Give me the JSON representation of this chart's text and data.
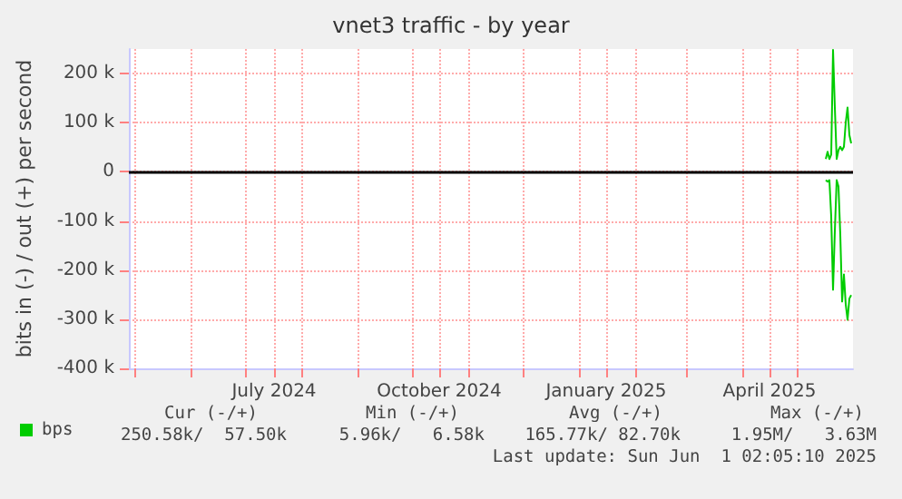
{
  "chart_data": {
    "type": "line",
    "title": "vnet3 traffic - by year",
    "ylabel": "bits in (-) / out (+) per second",
    "xlim": [
      "2024-04-28",
      "2025-06-01"
    ],
    "xticks": [
      {
        "value": "2024-05-01",
        "label": null
      },
      {
        "value": "2024-06-01",
        "label": null
      },
      {
        "value": "2024-07-01",
        "label": null
      },
      {
        "value": "2024-07-17",
        "label": "July 2024"
      },
      {
        "value": "2024-08-01",
        "label": null
      },
      {
        "value": "2024-09-01",
        "label": null
      },
      {
        "value": "2024-10-01",
        "label": null
      },
      {
        "value": "2024-10-16",
        "label": "October 2024"
      },
      {
        "value": "2024-11-01",
        "label": null
      },
      {
        "value": "2024-12-01",
        "label": null
      },
      {
        "value": "2025-01-01",
        "label": null
      },
      {
        "value": "2025-01-16",
        "label": "January 2025"
      },
      {
        "value": "2025-02-01",
        "label": null
      },
      {
        "value": "2025-03-01",
        "label": null
      },
      {
        "value": "2025-04-01",
        "label": null
      },
      {
        "value": "2025-04-16",
        "label": "April 2025"
      },
      {
        "value": "2025-05-01",
        "label": null
      }
    ],
    "ylim": [
      -400000,
      250000
    ],
    "yticks": [
      {
        "value": -400000,
        "label": "-400 k"
      },
      {
        "value": -300000,
        "label": "-300 k"
      },
      {
        "value": -200000,
        "label": "-200 k"
      },
      {
        "value": -100000,
        "label": "-100 k"
      },
      {
        "value": 0,
        "label": "0"
      },
      {
        "value": 100000,
        "label": "100 k"
      },
      {
        "value": 200000,
        "label": "200 k"
      }
    ],
    "grid": true,
    "legend": "bottom left",
    "marker": "none",
    "line_style": "solid",
    "x": [
      "2025-05-17",
      "2025-05-18",
      "2025-05-19",
      "2025-05-20",
      "2025-05-21",
      "2025-05-22",
      "2025-05-23",
      "2025-05-24",
      "2025-05-25",
      "2025-05-26",
      "2025-05-27",
      "2025-05-28",
      "2025-05-29",
      "2025-05-30",
      "2025-05-31"
    ],
    "series": [
      {
        "name": "bps",
        "color": "#00cc00",
        "values": [
          26000,
          41000,
          26000,
          35000,
          248000,
          131000,
          26000,
          44000,
          51000,
          44000,
          51000,
          100000,
          131000,
          75000,
          58000
        ]
      },
      {
        "color": "#00cc00",
        "values": [
          -17000,
          -20000,
          -17000,
          -91000,
          -240000,
          -120000,
          -17000,
          -30000,
          -128000,
          -264000,
          -209000,
          -270000,
          -301000,
          -258000,
          -251000
        ]
      }
    ],
    "ref_lines": [
      {
        "axis": "y",
        "value": 0,
        "color": "#000000"
      }
    ],
    "annotations": [
      "Cur (-/+)",
      "Min (-/+)",
      "Avg (-/+)",
      "Max (-/+)",
      "250.58k/  57.50k",
      "5.96k/   6.58k",
      "165.77k/ 82.70k",
      "1.95M/   3.63M",
      "Last update: Sun Jun  1 02:05:10 2025"
    ]
  }
}
